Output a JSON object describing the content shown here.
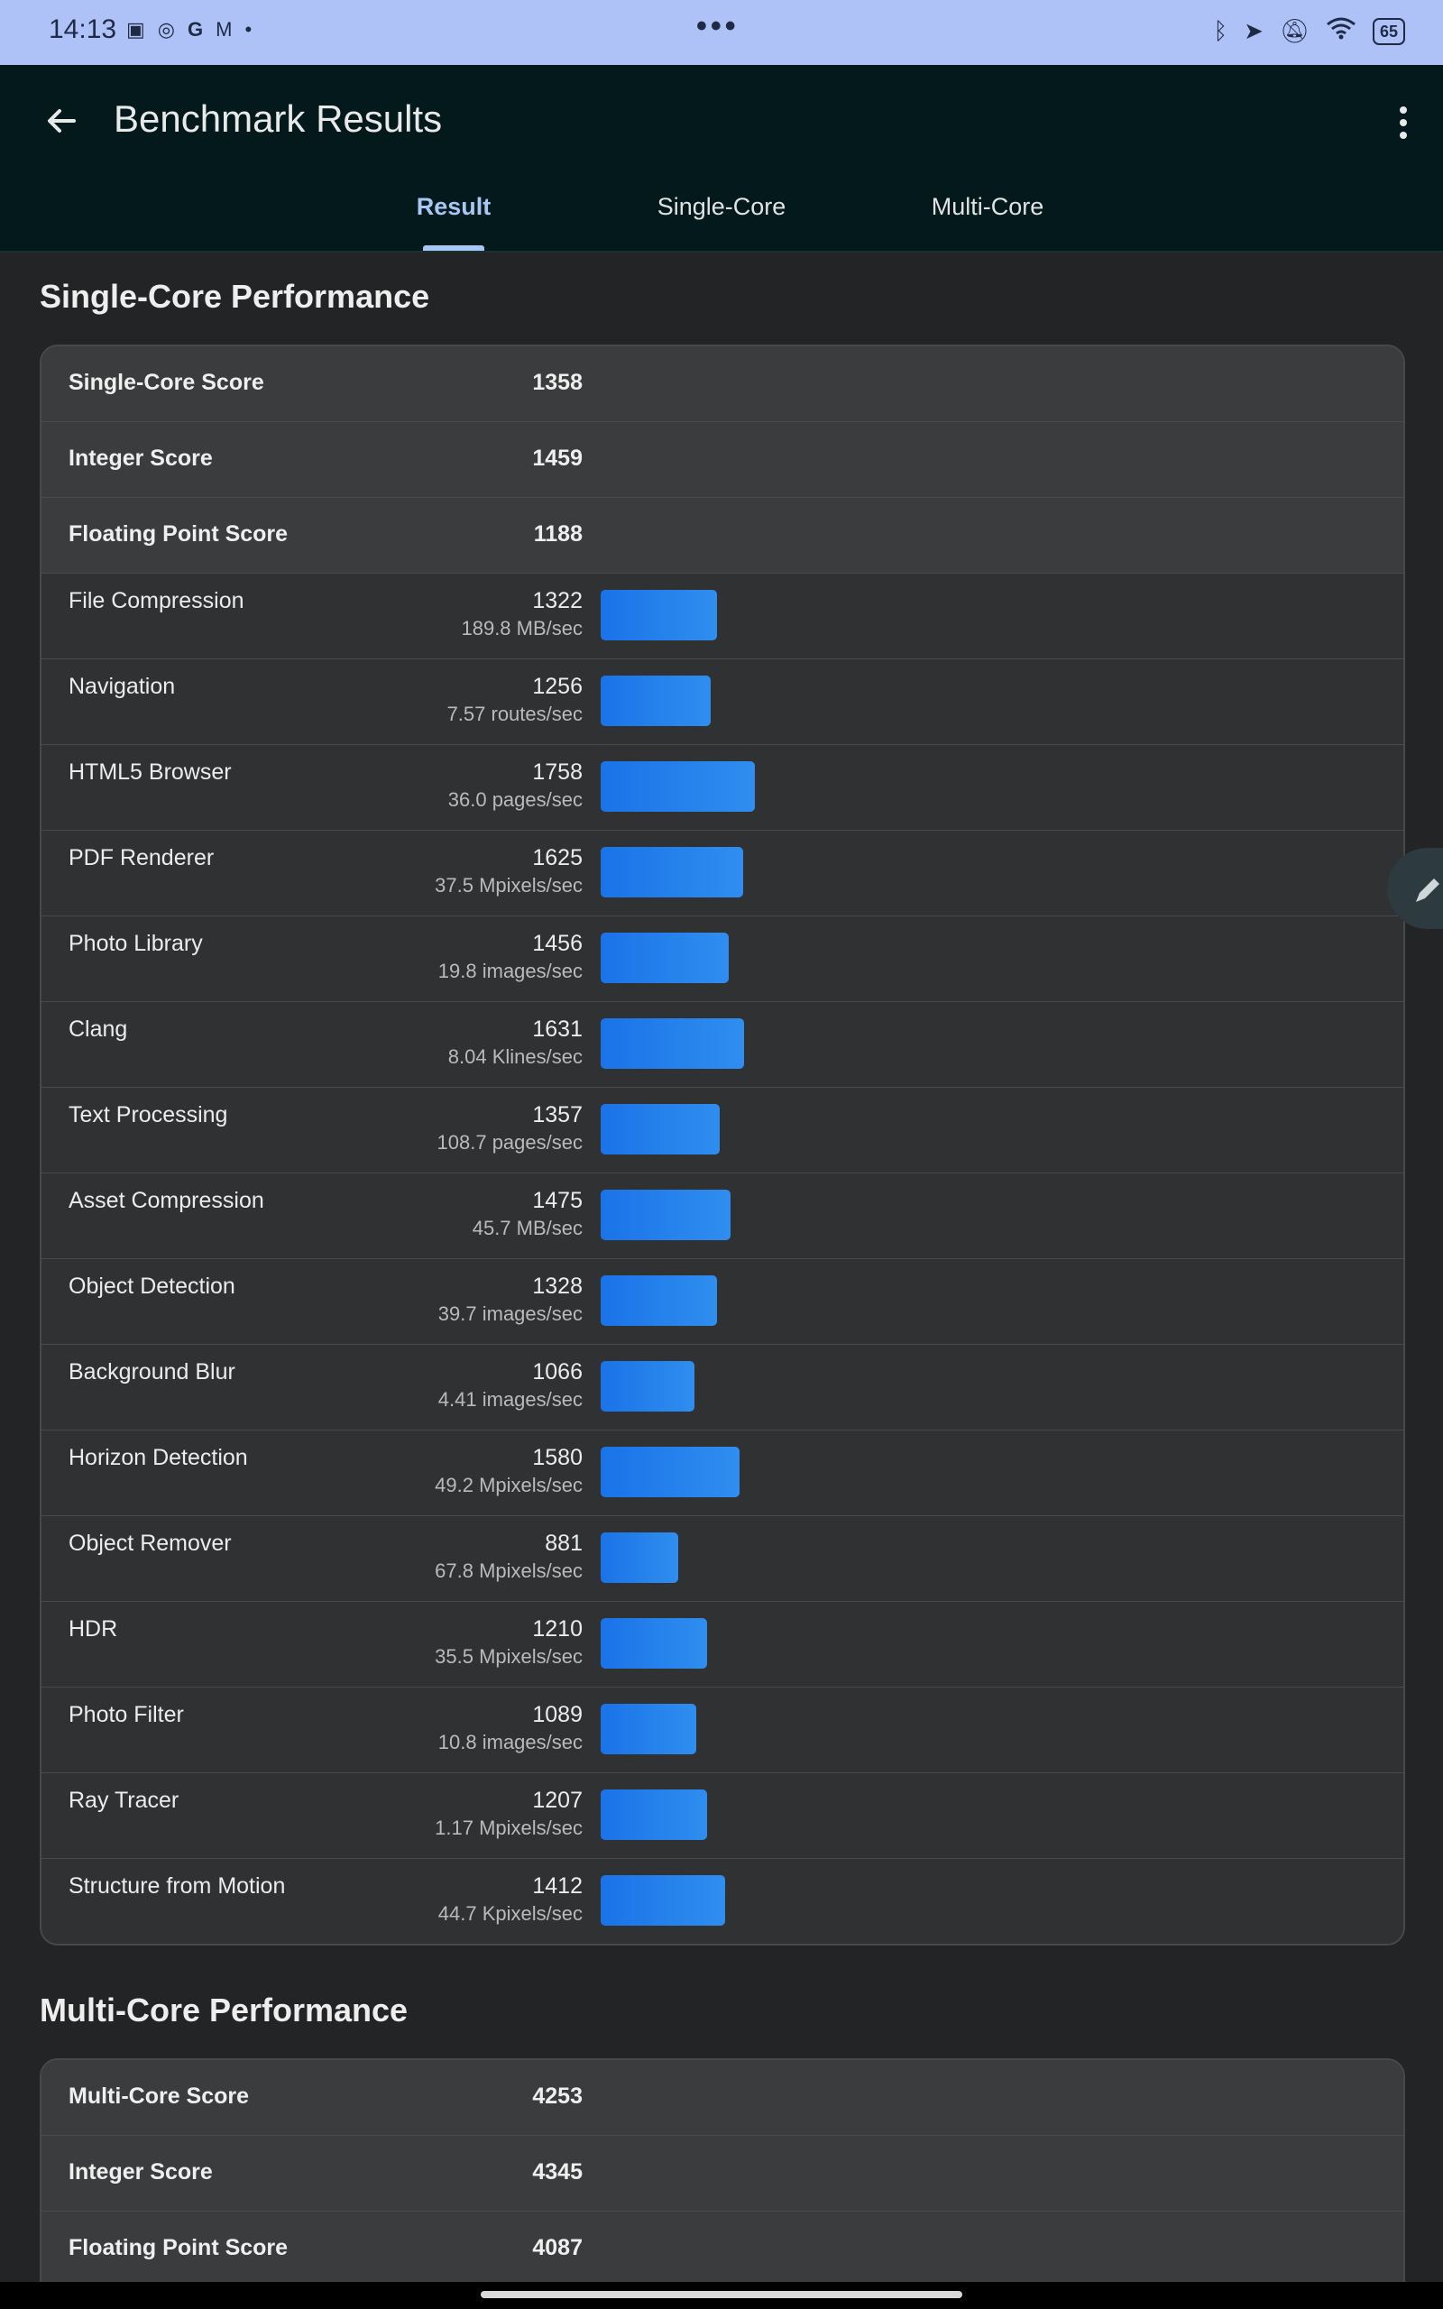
{
  "status_bar": {
    "time": "14:13",
    "left_icons": [
      "contacts-icon",
      "check-circle-icon",
      "google-icon",
      "gmail-icon",
      "dot-icon"
    ],
    "center_dots": "•••",
    "right_icons": [
      "bluetooth-icon",
      "location-icon",
      "bell-off-icon",
      "wifi-icon"
    ],
    "battery": "65"
  },
  "app_bar": {
    "title": "Benchmark Results",
    "back_icon": "arrow-left-icon",
    "menu_icon": "more-vertical-icon"
  },
  "tabs": [
    {
      "label": "Result",
      "active": true
    },
    {
      "label": "Single-Core",
      "active": false
    },
    {
      "label": "Multi-Core",
      "active": false
    }
  ],
  "single_core": {
    "title": "Single-Core Performance",
    "summary": [
      {
        "name": "Single-Core Score",
        "score": "1358"
      },
      {
        "name": "Integer Score",
        "score": "1459"
      },
      {
        "name": "Floating Point Score",
        "score": "1188"
      }
    ],
    "tests": [
      {
        "name": "File Compression",
        "score": "1322",
        "rate": "189.8 MB/sec"
      },
      {
        "name": "Navigation",
        "score": "1256",
        "rate": "7.57 routes/sec"
      },
      {
        "name": "HTML5 Browser",
        "score": "1758",
        "rate": "36.0 pages/sec"
      },
      {
        "name": "PDF Renderer",
        "score": "1625",
        "rate": "37.5 Mpixels/sec"
      },
      {
        "name": "Photo Library",
        "score": "1456",
        "rate": "19.8 images/sec"
      },
      {
        "name": "Clang",
        "score": "1631",
        "rate": "8.04 Klines/sec"
      },
      {
        "name": "Text Processing",
        "score": "1357",
        "rate": "108.7 pages/sec"
      },
      {
        "name": "Asset Compression",
        "score": "1475",
        "rate": "45.7 MB/sec"
      },
      {
        "name": "Object Detection",
        "score": "1328",
        "rate": "39.7 images/sec"
      },
      {
        "name": "Background Blur",
        "score": "1066",
        "rate": "4.41 images/sec"
      },
      {
        "name": "Horizon Detection",
        "score": "1580",
        "rate": "49.2 Mpixels/sec"
      },
      {
        "name": "Object Remover",
        "score": "881",
        "rate": "67.8 Mpixels/sec"
      },
      {
        "name": "HDR",
        "score": "1210",
        "rate": "35.5 Mpixels/sec"
      },
      {
        "name": "Photo Filter",
        "score": "1089",
        "rate": "10.8 images/sec"
      },
      {
        "name": "Ray Tracer",
        "score": "1207",
        "rate": "1.17 Mpixels/sec"
      },
      {
        "name": "Structure from Motion",
        "score": "1412",
        "rate": "44.7 Kpixels/sec"
      }
    ]
  },
  "multi_core": {
    "title": "Multi-Core Performance",
    "summary": [
      {
        "name": "Multi-Core Score",
        "score": "4253"
      },
      {
        "name": "Integer Score",
        "score": "4345"
      },
      {
        "name": "Floating Point Score",
        "score": "4087"
      }
    ]
  },
  "colors": {
    "bar": "#1a73e8",
    "accent": "#a7c7f4",
    "app_bar": "#04191b",
    "status_bar": "#aec2f7"
  },
  "fab_icon": "pencil-icon"
}
